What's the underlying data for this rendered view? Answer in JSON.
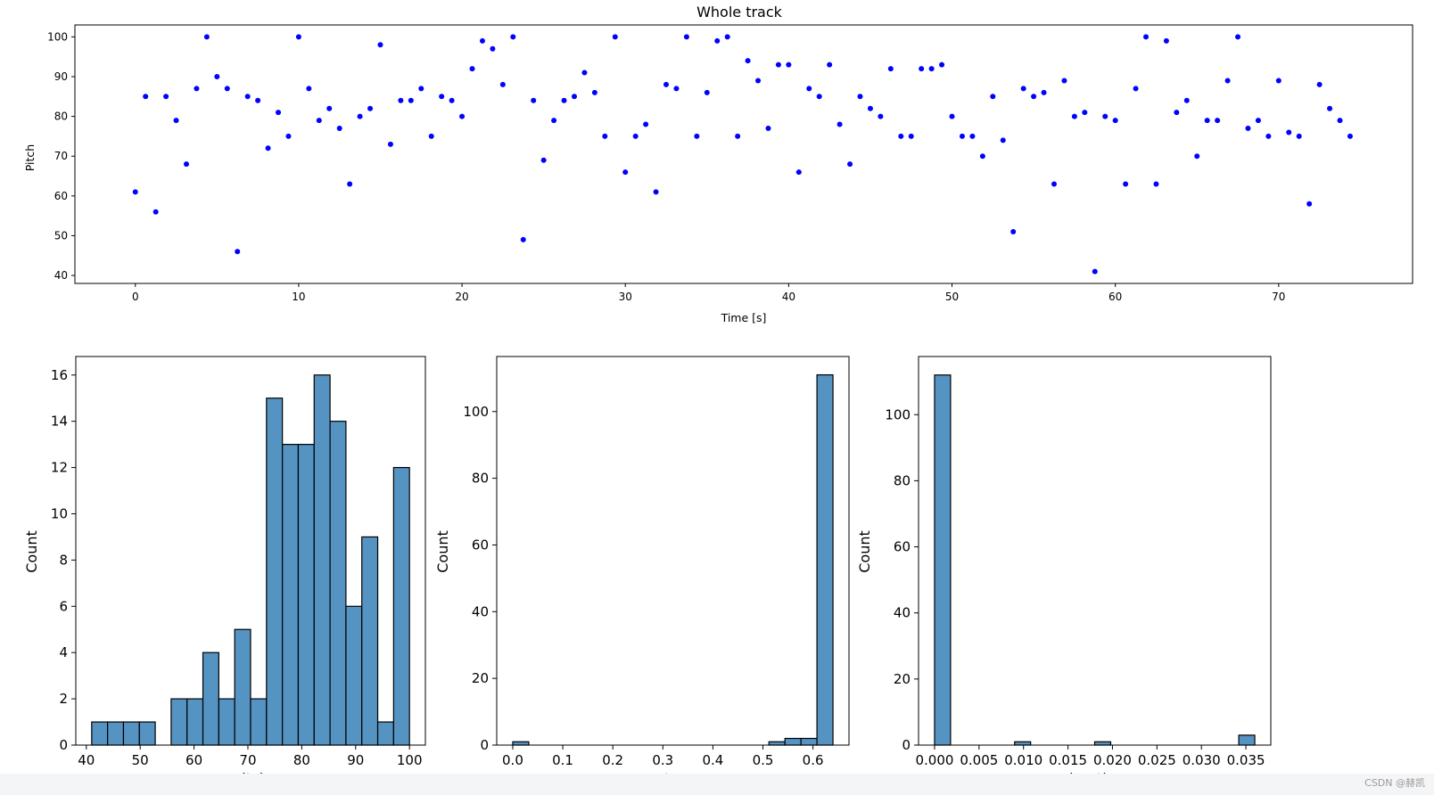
{
  "figure": {
    "background": "#ffffff"
  },
  "watermark": "CSDN @赫凯",
  "chart_data": [
    {
      "type": "scatter",
      "title": "Whole track",
      "xlabel": "Time [s]",
      "ylabel": "Pitch",
      "xlim": [
        -3.7,
        78.2
      ],
      "ylim": [
        38,
        103
      ],
      "xticks": [
        0,
        10,
        20,
        30,
        40,
        50,
        60,
        70
      ],
      "yticks": [
        40,
        50,
        60,
        70,
        80,
        90,
        100
      ],
      "color": "#0000ff",
      "points": [
        [
          0.0,
          61
        ],
        [
          0.625,
          85
        ],
        [
          1.25,
          56
        ],
        [
          1.875,
          85
        ],
        [
          2.5,
          79
        ],
        [
          3.125,
          68
        ],
        [
          3.75,
          87
        ],
        [
          4.375,
          100
        ],
        [
          5.0,
          90
        ],
        [
          5.625,
          87
        ],
        [
          6.25,
          46
        ],
        [
          6.875,
          85
        ],
        [
          7.5,
          84
        ],
        [
          8.125,
          72
        ],
        [
          8.75,
          81
        ],
        [
          9.375,
          75
        ],
        [
          10.0,
          100
        ],
        [
          10.625,
          87
        ],
        [
          11.25,
          79
        ],
        [
          11.875,
          82
        ],
        [
          12.5,
          77
        ],
        [
          13.125,
          63
        ],
        [
          13.75,
          80
        ],
        [
          14.375,
          82
        ],
        [
          15.0,
          98
        ],
        [
          15.625,
          73
        ],
        [
          16.25,
          84
        ],
        [
          16.875,
          84
        ],
        [
          17.5,
          87
        ],
        [
          18.125,
          75
        ],
        [
          18.75,
          85
        ],
        [
          19.375,
          84
        ],
        [
          20.0,
          80
        ],
        [
          20.625,
          92
        ],
        [
          21.25,
          99
        ],
        [
          21.875,
          97
        ],
        [
          22.5,
          88
        ],
        [
          23.125,
          100
        ],
        [
          23.75,
          49
        ],
        [
          24.375,
          84
        ],
        [
          25.0,
          69
        ],
        [
          25.625,
          79
        ],
        [
          26.25,
          84
        ],
        [
          26.875,
          85
        ],
        [
          27.5,
          91
        ],
        [
          28.125,
          86
        ],
        [
          28.75,
          75
        ],
        [
          29.375,
          100
        ],
        [
          30.0,
          66
        ],
        [
          30.625,
          75
        ],
        [
          31.25,
          78
        ],
        [
          31.875,
          61
        ],
        [
          32.5,
          88
        ],
        [
          33.125,
          87
        ],
        [
          33.75,
          100
        ],
        [
          34.375,
          75
        ],
        [
          35.0,
          86
        ],
        [
          35.625,
          99
        ],
        [
          36.25,
          100
        ],
        [
          36.875,
          75
        ],
        [
          37.5,
          94
        ],
        [
          38.125,
          89
        ],
        [
          38.75,
          77
        ],
        [
          39.375,
          93
        ],
        [
          40.0,
          93
        ],
        [
          40.625,
          66
        ],
        [
          41.25,
          87
        ],
        [
          41.875,
          85
        ],
        [
          42.5,
          93
        ],
        [
          43.125,
          78
        ],
        [
          43.75,
          68
        ],
        [
          44.375,
          85
        ],
        [
          45.0,
          82
        ],
        [
          45.625,
          80
        ],
        [
          46.25,
          92
        ],
        [
          46.875,
          75
        ],
        [
          47.5,
          75
        ],
        [
          48.125,
          92
        ],
        [
          48.75,
          92
        ],
        [
          49.375,
          93
        ],
        [
          50.0,
          80
        ],
        [
          50.625,
          75
        ],
        [
          51.25,
          75
        ],
        [
          51.875,
          70
        ],
        [
          52.5,
          85
        ],
        [
          53.125,
          74
        ],
        [
          53.75,
          51
        ],
        [
          54.375,
          87
        ],
        [
          55.0,
          85
        ],
        [
          55.625,
          86
        ],
        [
          56.25,
          63
        ],
        [
          56.875,
          89
        ],
        [
          57.5,
          80
        ],
        [
          58.125,
          81
        ],
        [
          58.75,
          41
        ],
        [
          59.375,
          80
        ],
        [
          60.0,
          79
        ],
        [
          60.625,
          63
        ],
        [
          61.25,
          87
        ],
        [
          61.875,
          100
        ],
        [
          62.5,
          63
        ],
        [
          63.125,
          99
        ],
        [
          63.75,
          81
        ],
        [
          64.375,
          84
        ],
        [
          65.0,
          70
        ],
        [
          65.625,
          79
        ],
        [
          66.25,
          79
        ],
        [
          66.875,
          89
        ],
        [
          67.5,
          100
        ],
        [
          68.125,
          77
        ],
        [
          68.75,
          79
        ],
        [
          69.375,
          75
        ],
        [
          70.0,
          89
        ],
        [
          70.625,
          76
        ],
        [
          71.25,
          75
        ],
        [
          71.875,
          58
        ],
        [
          72.5,
          88
        ],
        [
          73.125,
          82
        ],
        [
          73.75,
          79
        ],
        [
          74.375,
          75
        ]
      ]
    },
    {
      "type": "bar",
      "subtype": "histogram",
      "xlabel": "pitch",
      "ylabel": "Count",
      "xlim": [
        38.05,
        102.95
      ],
      "ylim": [
        0,
        16.8
      ],
      "xticks": [
        40,
        50,
        60,
        70,
        80,
        90,
        100
      ],
      "yticks": [
        0,
        2,
        4,
        6,
        8,
        10,
        12,
        14,
        16
      ],
      "bin_edges": [
        41,
        43.95,
        46.9,
        49.85,
        52.8,
        55.75,
        58.7,
        61.65,
        64.6,
        67.55,
        70.5,
        73.45,
        76.4,
        79.35,
        82.3,
        85.25,
        88.2,
        91.15,
        94.1,
        97.05,
        100
      ],
      "values": [
        1,
        1,
        1,
        1,
        0,
        2,
        2,
        4,
        2,
        5,
        2,
        15,
        13,
        13,
        16,
        14,
        6,
        9,
        1,
        12
      ],
      "color": "#5593c2"
    },
    {
      "type": "bar",
      "subtype": "histogram",
      "xlabel": "step",
      "ylabel": "Count",
      "xlim": [
        -0.032,
        0.672
      ],
      "ylim": [
        0,
        116.5
      ],
      "xticks": [
        "0.0",
        "0.1",
        "0.2",
        "0.3",
        "0.4",
        "0.5",
        "0.6"
      ],
      "yticks": [
        0,
        20,
        40,
        60,
        80,
        100
      ],
      "bin_edges": [
        0,
        0.032,
        0.064,
        0.096,
        0.128,
        0.16,
        0.192,
        0.224,
        0.256,
        0.288,
        0.32,
        0.352,
        0.384,
        0.416,
        0.448,
        0.48,
        0.512,
        0.544,
        0.576,
        0.608,
        0.64
      ],
      "values": [
        1,
        0,
        0,
        0,
        0,
        0,
        0,
        0,
        0,
        0,
        0,
        0,
        0,
        0,
        0,
        0,
        1,
        2,
        2,
        111
      ],
      "color": "#5593c2"
    },
    {
      "type": "bar",
      "subtype": "histogram",
      "xlabel": "duration",
      "ylabel": "Count",
      "xlim": [
        -0.0018,
        0.0378
      ],
      "ylim": [
        0,
        117.6
      ],
      "xticks": [
        "0.000",
        "0.005",
        "0.010",
        "0.015",
        "0.020",
        "0.025",
        "0.030",
        "0.035"
      ],
      "yticks": [
        0,
        20,
        40,
        60,
        80,
        100
      ],
      "bin_edges": [
        0,
        0.0018,
        0.0036,
        0.0054,
        0.0072,
        0.009,
        0.0108,
        0.0126,
        0.0144,
        0.0162,
        0.018,
        0.0198,
        0.0216,
        0.0234,
        0.0252,
        0.027,
        0.0288,
        0.0306,
        0.0324,
        0.0342,
        0.036
      ],
      "values": [
        112,
        0,
        0,
        0,
        0,
        1,
        0,
        0,
        0,
        0,
        1,
        0,
        0,
        0,
        0,
        0,
        0,
        0,
        0,
        3
      ],
      "color": "#5593c2"
    }
  ]
}
